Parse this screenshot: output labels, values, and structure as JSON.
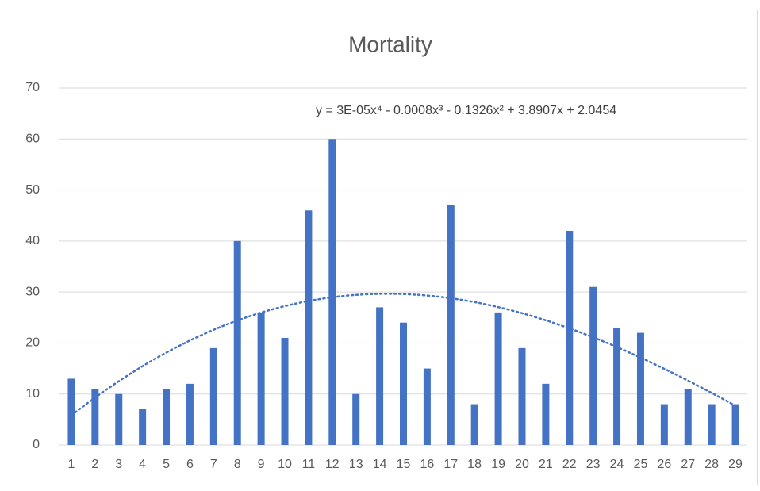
{
  "chart_data": {
    "type": "bar",
    "title": "Mortality",
    "categories": [
      "1",
      "2",
      "3",
      "4",
      "5",
      "6",
      "7",
      "8",
      "9",
      "10",
      "11",
      "12",
      "13",
      "14",
      "15",
      "16",
      "17",
      "18",
      "19",
      "20",
      "21",
      "22",
      "23",
      "24",
      "25",
      "26",
      "27",
      "28",
      "29"
    ],
    "values": [
      13,
      11,
      10,
      7,
      11,
      12,
      19,
      40,
      26,
      21,
      46,
      60,
      10,
      27,
      24,
      15,
      47,
      8,
      26,
      19,
      12,
      42,
      31,
      23,
      22,
      8,
      11,
      8,
      8
    ],
    "color": "#4472c4",
    "ylim": [
      0,
      70
    ],
    "yticks": [
      0,
      10,
      20,
      30,
      40,
      50,
      60,
      70
    ],
    "grid": true,
    "trendline": {
      "type": "polynomial",
      "order": 4,
      "style": "dotted",
      "equation": "y = 3E-05x⁴ - 0.0008x³ - 0.1326x² + 3.8907x + 2.0454"
    }
  }
}
